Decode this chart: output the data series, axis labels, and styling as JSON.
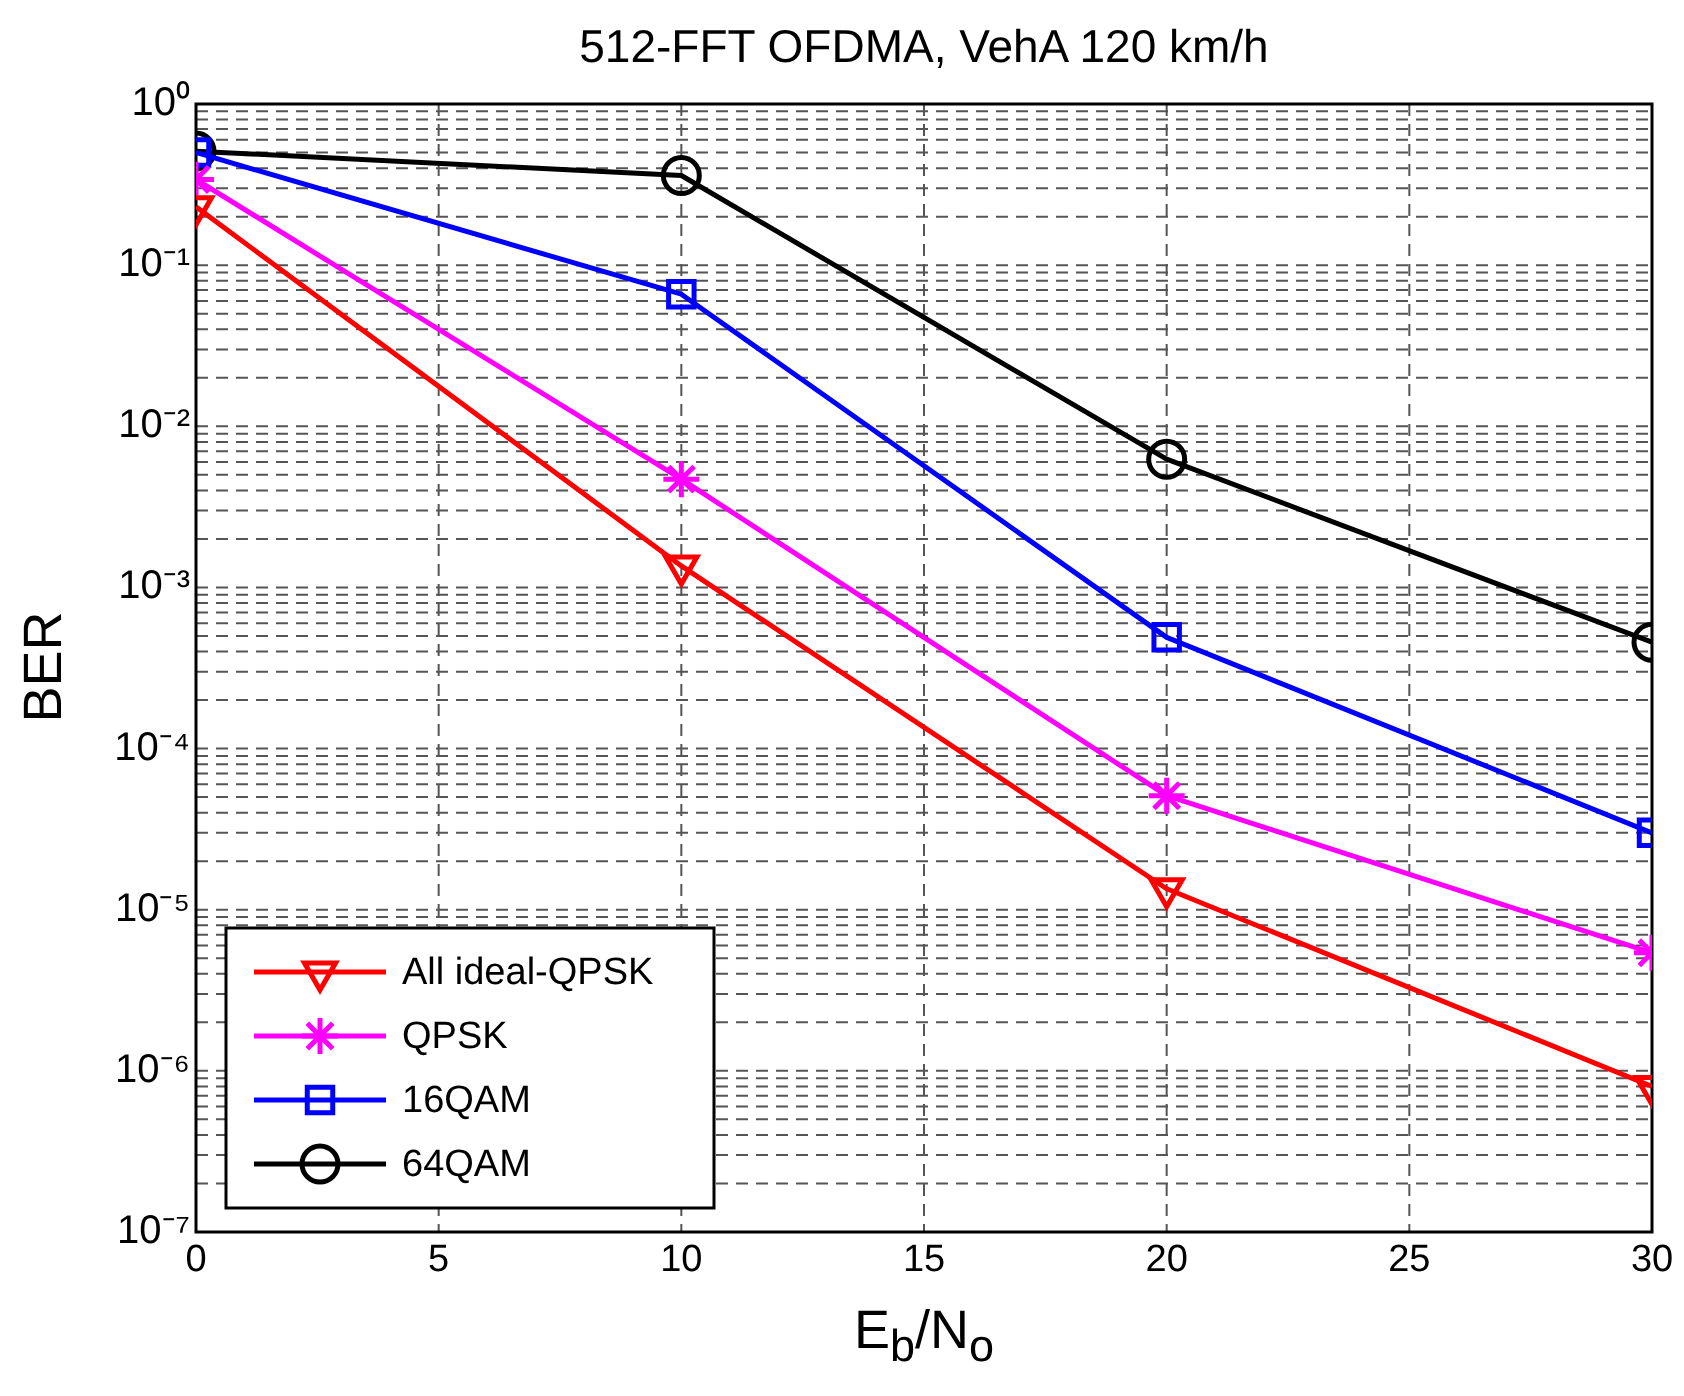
{
  "chart_data": {
    "type": "line",
    "title": "512-FFT OFDMA, VehA 120 km/h",
    "xlabel": "E$_{b}$/N$_{o}$",
    "ylabel": "BER",
    "x": [
      0,
      10,
      20,
      30
    ],
    "series": [
      {
        "name": "All ideal-QPSK",
        "color": "#ff0000",
        "marker": "triangle",
        "values": [
          0.23,
          0.00136,
          1.35e-05,
          8e-07
        ]
      },
      {
        "name": "QPSK",
        "color": "#ff00ff",
        "marker": "cross",
        "values": [
          0.34,
          0.0047,
          5.1e-05,
          5.4e-06
        ]
      },
      {
        "name": "16QAM",
        "color": "#0000ff",
        "marker": "square",
        "values": [
          0.5,
          0.066,
          0.00049,
          3e-05
        ]
      },
      {
        "name": "64QAM",
        "color": "#000000",
        "marker": "circle",
        "values": [
          0.51,
          0.36,
          0.00625,
          0.000457
        ]
      }
    ],
    "xlim": [
      0,
      30
    ],
    "xticks": [
      0,
      5,
      10,
      15,
      20,
      25,
      30
    ],
    "ylim": [
      1e-07,
      1
    ],
    "yticks": [
      {
        "value": 1,
        "label": "10⁰"
      },
      {
        "value": 0.1,
        "label": "10⁻¹"
      },
      {
        "value": 0.01,
        "label": "10⁻²"
      },
      {
        "value": 0.001,
        "label": "10⁻³"
      },
      {
        "value": 0.0001,
        "label": "10⁻⁴"
      },
      {
        "value": 1e-05,
        "label": "10⁻⁵"
      },
      {
        "value": 1e-06,
        "label": "10⁻⁶"
      },
      {
        "value": 1e-07,
        "label": "10⁻⁷"
      }
    ],
    "log": "y",
    "grid": true,
    "legend": "bottom left",
    "line_style": "solid"
  }
}
